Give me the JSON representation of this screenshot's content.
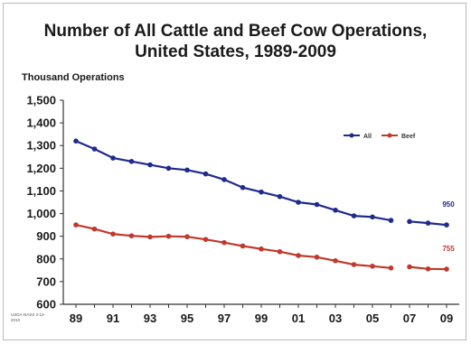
{
  "chart_data": {
    "type": "line",
    "title": "Number of All Cattle and Beef Cow Operations, United States, 1989-2009",
    "title_lines": [
      "Number of All Cattle and Beef Cow Operations,",
      "United States, 1989-2009"
    ],
    "ylabel": "Thousand Operations",
    "xlabel": "",
    "ylim": [
      600,
      1500
    ],
    "yticks": [
      "600",
      "700",
      "800",
      "900",
      "1,000",
      "1,100",
      "1,200",
      "1,300",
      "1,400",
      "1,500"
    ],
    "xticks": [
      "89",
      "91",
      "93",
      "95",
      "97",
      "99",
      "01",
      "03",
      "05",
      "07",
      "09"
    ],
    "x": [
      1989,
      1990,
      1991,
      1992,
      1993,
      1994,
      1995,
      1996,
      1997,
      1998,
      1999,
      2000,
      2001,
      2002,
      2003,
      2004,
      2005,
      2006,
      2007,
      2008,
      2009
    ],
    "series": [
      {
        "name": "All",
        "color": "#1f2a8c",
        "values": [
          1320,
          1285,
          1245,
          1230,
          1215,
          1200,
          1192,
          1175,
          1150,
          1115,
          1095,
          1075,
          1050,
          1040,
          1015,
          990,
          985,
          970,
          965,
          958,
          950
        ],
        "end_label": "950"
      },
      {
        "name": "Beef",
        "color": "#c0392b",
        "values": [
          950,
          932,
          910,
          902,
          897,
          900,
          898,
          886,
          872,
          857,
          844,
          832,
          815,
          808,
          792,
          775,
          768,
          760,
          765,
          756,
          755
        ],
        "end_label": "755"
      }
    ],
    "gap_after": 2006,
    "grid": false,
    "legend": {
      "position": "top-right",
      "entries": [
        "All",
        "Beef"
      ]
    },
    "source_note": "USDA-NASS 2-12-2010"
  }
}
